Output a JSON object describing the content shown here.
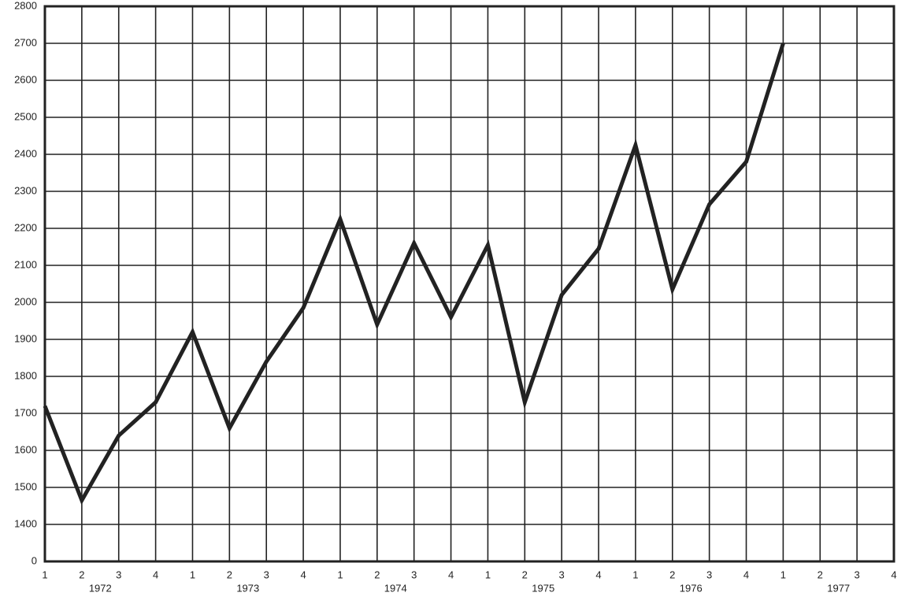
{
  "chart_data": {
    "type": "line",
    "categories": [
      "1",
      "2",
      "3",
      "4",
      "1",
      "2",
      "3",
      "4",
      "1",
      "2",
      "3",
      "4",
      "1",
      "2",
      "3",
      "4",
      "1",
      "2",
      "3",
      "4",
      "1",
      "2",
      "3",
      "4"
    ],
    "years": [
      "1972",
      "1973",
      "1974",
      "1975",
      "1976",
      "1977"
    ],
    "values": [
      1720,
      1465,
      1640,
      1730,
      1920,
      1660,
      1840,
      1985,
      2225,
      1940,
      2160,
      1960,
      2155,
      1730,
      2020,
      2145,
      2425,
      2035,
      2265,
      2380,
      2700,
      null,
      null,
      null
    ],
    "color": "#222222",
    "ylim": [
      1300,
      2800
    ],
    "yticks": [
      {
        "value": 1300,
        "label": "0"
      },
      1400,
      1500,
      1600,
      1700,
      1800,
      1900,
      2000,
      2100,
      2200,
      2300,
      2400,
      2500,
      2600,
      2700,
      2800
    ],
    "grid": true
  }
}
